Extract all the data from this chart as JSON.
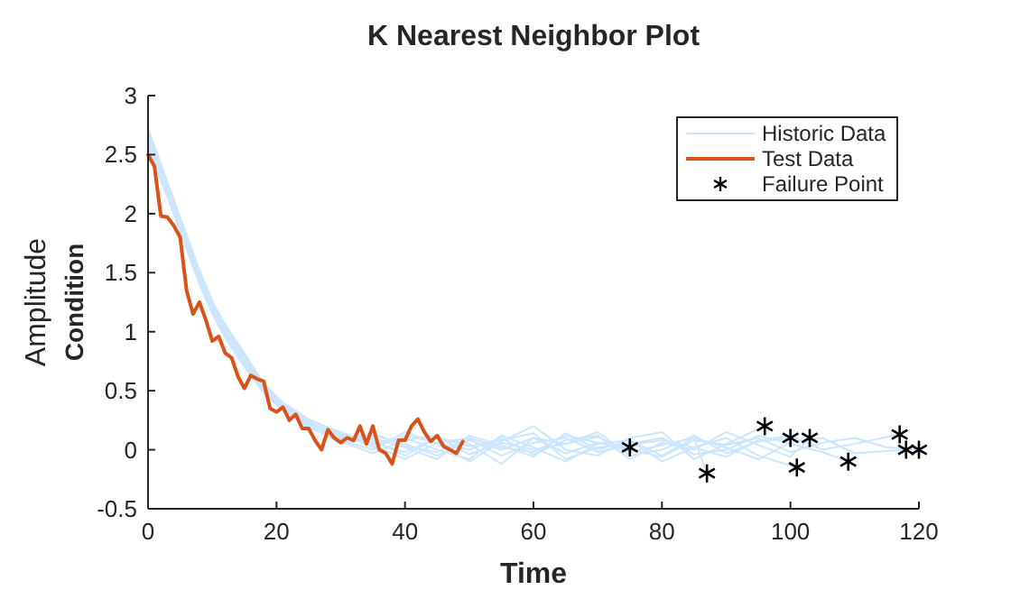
{
  "chart_data": {
    "type": "line",
    "title": "K Nearest Neighbor Plot",
    "xlabel": "Time",
    "ylabel": "Condition",
    "annotations": [
      "Amplitude"
    ],
    "xlim": [
      0,
      120
    ],
    "xticks": [
      0,
      20,
      40,
      60,
      80,
      100,
      120
    ],
    "ylim": [
      -0.5,
      3
    ],
    "yticks": [
      -0.5,
      0,
      0.5,
      1,
      1.5,
      2,
      2.5,
      3
    ],
    "grid": false,
    "legend": "top right",
    "series": [
      {
        "name": "Historic Data",
        "color": "#cce6ff",
        "x": [
          0,
          2,
          4,
          6,
          8,
          10,
          12,
          15,
          18,
          21,
          25,
          30,
          35,
          40,
          45,
          50,
          55,
          60,
          65,
          70,
          75
        ],
        "values": [
          2.65,
          2.35,
          2.05,
          1.75,
          1.45,
          1.2,
          1.0,
          0.75,
          0.5,
          0.35,
          0.22,
          0.1,
          0.12,
          0.05,
          -0.05,
          0.08,
          0.0,
          0.1,
          -0.03,
          0.06,
          0.02
        ]
      },
      {
        "color": "#cce6ff",
        "x": [
          0,
          2,
          4,
          6,
          8,
          10,
          12,
          15,
          18,
          21,
          25,
          30,
          35,
          40,
          45,
          50,
          55,
          60,
          65,
          70,
          75,
          80,
          85,
          87
        ],
        "values": [
          2.7,
          2.4,
          2.1,
          1.8,
          1.5,
          1.25,
          1.05,
          0.8,
          0.55,
          0.38,
          0.25,
          0.15,
          0.05,
          0.1,
          0.0,
          -0.08,
          0.12,
          0.02,
          -0.1,
          0.05,
          0.08,
          -0.05,
          0.1,
          -0.2
        ]
      },
      {
        "color": "#cce6ff",
        "x": [
          0,
          2,
          4,
          6,
          8,
          10,
          12,
          15,
          18,
          21,
          25,
          30,
          35,
          40,
          45,
          50,
          55,
          60,
          65,
          70,
          75,
          80,
          85,
          90,
          96
        ],
        "values": [
          2.6,
          2.3,
          2.0,
          1.7,
          1.4,
          1.15,
          0.95,
          0.7,
          0.48,
          0.33,
          0.2,
          0.08,
          0.0,
          0.15,
          0.05,
          -0.1,
          0.07,
          0.2,
          0.0,
          -0.05,
          0.1,
          0.15,
          -0.08,
          0.05,
          0.2
        ]
      },
      {
        "color": "#cce6ff",
        "x": [
          0,
          2,
          4,
          6,
          8,
          10,
          12,
          15,
          18,
          21,
          25,
          30,
          35,
          40,
          45,
          50,
          55,
          60,
          65,
          70,
          75,
          80,
          85,
          90,
          95,
          100
        ],
        "values": [
          2.68,
          2.38,
          2.08,
          1.78,
          1.48,
          1.22,
          1.02,
          0.78,
          0.52,
          0.36,
          0.18,
          0.12,
          0.08,
          -0.05,
          0.1,
          0.05,
          -0.12,
          0.1,
          0.05,
          0.15,
          -0.05,
          0.0,
          0.12,
          -0.03,
          0.07,
          0.1
        ]
      },
      {
        "color": "#cce6ff",
        "x": [
          0,
          2,
          4,
          6,
          8,
          10,
          12,
          15,
          18,
          21,
          25,
          30,
          35,
          40,
          45,
          50,
          55,
          60,
          65,
          70,
          75,
          80,
          85,
          90,
          95,
          101
        ],
        "values": [
          2.55,
          2.28,
          2.0,
          1.72,
          1.42,
          1.18,
          0.98,
          0.72,
          0.5,
          0.34,
          0.21,
          0.05,
          0.1,
          0.02,
          -0.08,
          0.12,
          0.04,
          -0.06,
          0.14,
          0.0,
          0.08,
          -0.1,
          0.02,
          0.1,
          -0.05,
          -0.15
        ]
      },
      {
        "color": "#cce6ff",
        "x": [
          0,
          2,
          4,
          6,
          8,
          10,
          12,
          15,
          18,
          21,
          25,
          30,
          35,
          40,
          45,
          50,
          55,
          60,
          65,
          70,
          75,
          80,
          85,
          90,
          95,
          100,
          103
        ],
        "values": [
          2.72,
          2.42,
          2.12,
          1.82,
          1.52,
          1.26,
          1.06,
          0.82,
          0.56,
          0.4,
          0.26,
          0.14,
          0.02,
          0.12,
          0.06,
          0.0,
          0.1,
          -0.04,
          0.08,
          0.12,
          -0.08,
          0.06,
          0.0,
          0.15,
          0.04,
          -0.06,
          0.1
        ]
      },
      {
        "color": "#cce6ff",
        "x": [
          0,
          2,
          4,
          6,
          8,
          10,
          12,
          15,
          18,
          21,
          25,
          30,
          35,
          40,
          45,
          50,
          55,
          60,
          65,
          70,
          75,
          80,
          85,
          90,
          95,
          100,
          105,
          109
        ],
        "values": [
          2.62,
          2.33,
          2.03,
          1.73,
          1.43,
          1.19,
          0.99,
          0.74,
          0.49,
          0.36,
          0.23,
          0.11,
          0.06,
          -0.02,
          0.1,
          0.03,
          0.08,
          0.14,
          -0.08,
          0.02,
          0.05,
          0.1,
          -0.04,
          0.0,
          0.12,
          0.05,
          -0.02,
          -0.1
        ]
      },
      {
        "color": "#cce6ff",
        "x": [
          0,
          2,
          4,
          6,
          8,
          10,
          12,
          15,
          18,
          21,
          25,
          30,
          35,
          40,
          45,
          50,
          55,
          60,
          65,
          70,
          75,
          80,
          85,
          90,
          95,
          100,
          105,
          110,
          117
        ],
        "values": [
          2.66,
          2.36,
          2.06,
          1.76,
          1.46,
          1.21,
          1.01,
          0.76,
          0.51,
          0.37,
          0.24,
          0.09,
          0.14,
          0.03,
          -0.02,
          0.09,
          -0.05,
          0.06,
          0.1,
          -0.02,
          0.04,
          0.08,
          0.02,
          -0.06,
          0.08,
          0.12,
          0.0,
          0.05,
          0.13
        ]
      },
      {
        "color": "#cce6ff",
        "x": [
          0,
          2,
          4,
          6,
          8,
          10,
          12,
          15,
          18,
          21,
          25,
          30,
          35,
          40,
          45,
          50,
          55,
          60,
          65,
          70,
          75,
          80,
          85,
          90,
          95,
          100,
          105,
          110,
          118
        ],
        "values": [
          2.58,
          2.3,
          2.02,
          1.74,
          1.44,
          1.17,
          0.97,
          0.73,
          0.5,
          0.33,
          0.19,
          0.07,
          -0.03,
          0.08,
          0.12,
          -0.04,
          0.06,
          0.0,
          0.05,
          0.11,
          -0.02,
          0.04,
          0.1,
          0.02,
          -0.08,
          0.06,
          0.1,
          -0.03,
          0.0
        ]
      },
      {
        "color": "#cce6ff",
        "x": [
          0,
          2,
          4,
          6,
          8,
          10,
          12,
          15,
          18,
          21,
          25,
          30,
          35,
          40,
          45,
          50,
          55,
          60,
          65,
          70,
          75,
          80,
          85,
          90,
          95,
          100,
          105,
          110,
          115,
          120
        ],
        "values": [
          2.7,
          2.39,
          2.09,
          1.79,
          1.49,
          1.23,
          1.03,
          0.79,
          0.53,
          0.38,
          0.23,
          0.13,
          0.04,
          -0.08,
          0.06,
          0.1,
          0.02,
          -0.02,
          0.12,
          0.06,
          0.0,
          -0.06,
          0.08,
          0.04,
          0.1,
          -0.02,
          0.06,
          0.1,
          0.02,
          0.0
        ]
      },
      {
        "name": "Test Data",
        "color": "#d95319",
        "x": [
          0,
          1,
          2,
          3,
          4,
          5,
          6,
          7,
          8,
          9,
          10,
          11,
          12,
          13,
          14,
          15,
          16,
          17,
          18,
          19,
          20,
          21,
          22,
          23,
          24,
          25,
          26,
          27,
          28,
          29,
          30,
          31,
          32,
          33,
          34,
          35,
          36,
          37,
          38,
          39,
          40,
          41,
          42,
          43,
          44,
          45,
          46,
          47,
          48,
          49
        ],
        "values": [
          2.5,
          2.4,
          1.98,
          1.97,
          1.9,
          1.8,
          1.35,
          1.15,
          1.25,
          1.1,
          0.92,
          0.96,
          0.82,
          0.78,
          0.62,
          0.52,
          0.63,
          0.6,
          0.58,
          0.35,
          0.32,
          0.36,
          0.25,
          0.3,
          0.18,
          0.18,
          0.08,
          0.0,
          0.17,
          0.1,
          0.06,
          0.1,
          0.08,
          0.2,
          0.05,
          0.2,
          0.0,
          -0.03,
          -0.12,
          0.08,
          0.08,
          0.2,
          0.26,
          0.15,
          0.07,
          0.12,
          0.03,
          0.0,
          -0.03,
          0.07
        ]
      },
      {
        "name": "Failure Point",
        "type": "scatter",
        "marker": "cross",
        "color": "#000000",
        "x": [
          75,
          87,
          96,
          100,
          101,
          103,
          109,
          117,
          118,
          120
        ],
        "values": [
          0.02,
          -0.2,
          0.2,
          0.1,
          -0.15,
          0.1,
          -0.1,
          0.13,
          0.0,
          0.0
        ]
      }
    ]
  }
}
